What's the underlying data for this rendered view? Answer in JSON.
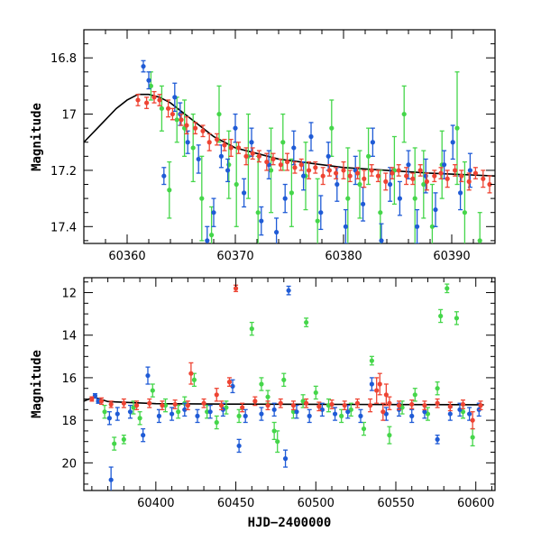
{
  "chart_data": [
    {
      "type": "scatter",
      "title": "",
      "xlabel": "",
      "ylabel": "Magnitude",
      "xlim": [
        60356,
        60394
      ],
      "ylim": [
        17.46,
        16.7
      ],
      "y_inverted": true,
      "xticks": [
        60360,
        60370,
        60380,
        60390
      ],
      "xtick_labels": [
        "60360",
        "60370",
        "60380",
        "60390"
      ],
      "yticks": [
        16.8,
        17,
        17.2,
        17.4
      ],
      "ytick_labels": [
        "16.8",
        "17",
        "17.2",
        "17.4"
      ],
      "grid": false,
      "colors": {
        "blue": "#1f5bd6",
        "green": "#45d64a",
        "red": "#ee4433",
        "model": "#000000"
      },
      "model_curve": {
        "x": [
          60356,
          60357,
          60358,
          60359,
          60360,
          60361,
          60362,
          60363,
          60364,
          60365,
          60366,
          60367,
          60368,
          60369,
          60370,
          60372,
          60374,
          60376,
          60378,
          60380,
          60384,
          60388,
          60394
        ],
        "y": [
          17.1,
          17.06,
          17.02,
          16.98,
          16.95,
          16.93,
          16.93,
          16.94,
          16.96,
          16.99,
          17.02,
          17.05,
          17.08,
          17.1,
          17.12,
          17.14,
          17.16,
          17.17,
          17.18,
          17.19,
          17.2,
          17.21,
          17.22
        ]
      },
      "series": [
        {
          "name": "",
          "color_key": "red",
          "x": [
            60361,
            60361.8,
            60362.5,
            60363,
            60363.8,
            60364.2,
            60365,
            60365.5,
            60366.3,
            60367,
            60367.6,
            60368.3,
            60369,
            60369.6,
            60370.3,
            60371,
            60371.6,
            60372.2,
            60372.9,
            60373.5,
            60374.2,
            60374.8,
            60375.5,
            60376.1,
            60376.8,
            60377.4,
            60378.1,
            60378.7,
            60379.3,
            60380,
            60380.6,
            60381.3,
            60381.9,
            60382.6,
            60383.2,
            60383.9,
            60384.5,
            60385.1,
            60385.8,
            60386.4,
            60387.1,
            60387.7,
            60388.4,
            60389,
            60389.6,
            60390.3,
            60390.9,
            60391.6,
            60392.2,
            60392.9,
            60393.5
          ],
          "y": [
            16.95,
            16.96,
            16.94,
            16.95,
            16.98,
            17.0,
            17.02,
            17.04,
            17.05,
            17.06,
            17.1,
            17.09,
            17.11,
            17.12,
            17.12,
            17.15,
            17.14,
            17.15,
            17.17,
            17.16,
            17.18,
            17.17,
            17.19,
            17.18,
            17.2,
            17.19,
            17.22,
            17.2,
            17.21,
            17.2,
            17.22,
            17.21,
            17.23,
            17.2,
            17.22,
            17.24,
            17.21,
            17.2,
            17.22,
            17.23,
            17.2,
            17.24,
            17.22,
            17.21,
            17.23,
            17.2,
            17.22,
            17.24,
            17.21,
            17.23,
            17.25
          ],
          "err": [
            0.02,
            0.02,
            0.02,
            0.02,
            0.03,
            0.02,
            0.02,
            0.03,
            0.02,
            0.02,
            0.03,
            0.02,
            0.02,
            0.03,
            0.02,
            0.03,
            0.02,
            0.02,
            0.03,
            0.02,
            0.02,
            0.03,
            0.02,
            0.02,
            0.03,
            0.02,
            0.03,
            0.02,
            0.02,
            0.03,
            0.02,
            0.02,
            0.03,
            0.02,
            0.02,
            0.03,
            0.02,
            0.02,
            0.03,
            0.02,
            0.02,
            0.03,
            0.02,
            0.02,
            0.03,
            0.02,
            0.02,
            0.03,
            0.02,
            0.03,
            0.03
          ]
        },
        {
          "name": "",
          "color_key": "blue",
          "x": [
            60361.5,
            60362,
            60363.4,
            60364.4,
            60364.9,
            60365.6,
            60366.6,
            60367.4,
            60368,
            60368.7,
            60369.3,
            60370,
            60370.8,
            60371.5,
            60372.4,
            60373.1,
            60373.8,
            60374.6,
            60375.4,
            60376.3,
            60377,
            60377.9,
            60378.6,
            60379.4,
            60380.2,
            60381.1,
            60381.8,
            60382.7,
            60383.5,
            60384.3,
            60385.2,
            60386,
            60386.8,
            60387.6,
            60388.5,
            60389.3,
            60390.1,
            60390.8,
            60391.7
          ],
          "y": [
            16.83,
            16.88,
            17.22,
            16.94,
            17.0,
            17.1,
            17.16,
            17.45,
            17.35,
            17.15,
            17.2,
            17.05,
            17.28,
            17.1,
            17.38,
            17.18,
            17.42,
            17.3,
            17.12,
            17.22,
            17.08,
            17.35,
            17.15,
            17.25,
            17.4,
            17.2,
            17.32,
            17.1,
            17.45,
            17.25,
            17.3,
            17.18,
            17.4,
            17.22,
            17.34,
            17.18,
            17.1,
            17.28,
            17.2
          ],
          "err": [
            0.02,
            0.03,
            0.03,
            0.05,
            0.04,
            0.04,
            0.05,
            0.05,
            0.05,
            0.04,
            0.04,
            0.05,
            0.05,
            0.05,
            0.05,
            0.05,
            0.05,
            0.05,
            0.06,
            0.05,
            0.05,
            0.06,
            0.05,
            0.06,
            0.06,
            0.05,
            0.06,
            0.05,
            0.06,
            0.06,
            0.06,
            0.05,
            0.06,
            0.06,
            0.06,
            0.05,
            0.06,
            0.06,
            0.06
          ]
        },
        {
          "name": "",
          "color_key": "green",
          "x": [
            60362.2,
            60363.2,
            60363.9,
            60364.6,
            60365.3,
            60366.1,
            60366.9,
            60367.8,
            60368.5,
            60369.4,
            60370.1,
            60371.2,
            60372.1,
            60373.3,
            60374.4,
            60375.2,
            60376.5,
            60377.6,
            60378.9,
            60380.4,
            60381.5,
            60382.3,
            60383.4,
            60384.7,
            60385.6,
            60386.6,
            60387.4,
            60388.2,
            60389.1,
            60390.5,
            60391.2,
            60392.6
          ],
          "y": [
            16.9,
            16.98,
            17.27,
            17.02,
            17.05,
            17.12,
            17.3,
            17.43,
            17.0,
            17.18,
            17.25,
            17.15,
            17.35,
            17.2,
            17.1,
            17.28,
            17.22,
            17.38,
            17.05,
            17.3,
            17.25,
            17.15,
            17.35,
            17.2,
            17.0,
            17.3,
            17.25,
            17.4,
            17.18,
            17.05,
            17.35,
            17.45
          ],
          "err": [
            0.05,
            0.08,
            0.1,
            0.08,
            0.1,
            0.12,
            0.15,
            0.1,
            0.1,
            0.12,
            0.15,
            0.15,
            0.2,
            0.15,
            0.1,
            0.12,
            0.12,
            0.15,
            0.1,
            0.18,
            0.12,
            0.1,
            0.15,
            0.12,
            0.1,
            0.18,
            0.12,
            0.15,
            0.12,
            0.2,
            0.18,
            0.1
          ]
        }
      ]
    },
    {
      "type": "scatter",
      "title": "",
      "xlabel": "HJD−2400000",
      "ylabel": "Magnitude",
      "xlim": [
        60355,
        60612
      ],
      "ylim": [
        21.3,
        11.3
      ],
      "y_inverted": true,
      "xticks": [
        60400,
        60450,
        60500,
        60550,
        60600
      ],
      "xtick_labels": [
        "60400",
        "60450",
        "60500",
        "60550",
        "60600"
      ],
      "yticks": [
        12,
        14,
        16,
        18,
        20
      ],
      "ytick_labels": [
        "12",
        "14",
        "16",
        "18",
        "20"
      ],
      "grid": false,
      "colors": {
        "blue": "#1f5bd6",
        "green": "#45d64a",
        "red": "#ee4433",
        "model": "#000000"
      },
      "model_curve": {
        "x": [
          60355,
          60360,
          60362,
          60370,
          60400,
          60450,
          60500,
          60550,
          60605
        ],
        "y": [
          17.1,
          16.95,
          16.93,
          17.12,
          17.22,
          17.24,
          17.25,
          17.26,
          17.27
        ]
      },
      "series": [
        {
          "name": "",
          "color_key": "red",
          "x": [
            60360,
            60366,
            60372,
            60380,
            60388,
            60396,
            60404,
            60412,
            60420,
            60422,
            60430,
            60438,
            60441,
            60446,
            60450,
            60454,
            60462,
            60470,
            60478,
            60486,
            60494,
            60502,
            60510,
            60518,
            60526,
            60534,
            60538,
            60540,
            60542,
            60544,
            60546,
            60552,
            60560,
            60568,
            60576,
            60584,
            60592,
            60598,
            60603
          ],
          "y": [
            17.0,
            17.1,
            17.25,
            17.2,
            17.3,
            17.2,
            17.3,
            17.25,
            17.3,
            15.8,
            17.2,
            16.8,
            17.3,
            16.2,
            11.8,
            17.4,
            17.1,
            17.3,
            17.2,
            17.3,
            17.2,
            17.35,
            17.25,
            17.3,
            17.2,
            17.3,
            16.6,
            16.3,
            17.6,
            16.8,
            17.2,
            17.3,
            17.25,
            17.3,
            17.2,
            17.35,
            17.25,
            18.0,
            17.3
          ],
          "err": [
            0.1,
            0.15,
            0.15,
            0.2,
            0.2,
            0.2,
            0.2,
            0.2,
            0.2,
            0.5,
            0.2,
            0.3,
            0.2,
            0.2,
            0.15,
            0.2,
            0.2,
            0.2,
            0.2,
            0.2,
            0.2,
            0.2,
            0.2,
            0.2,
            0.2,
            0.3,
            0.6,
            0.5,
            0.4,
            0.5,
            0.3,
            0.2,
            0.2,
            0.2,
            0.2,
            0.2,
            0.2,
            0.4,
            0.2
          ]
        },
        {
          "name": "",
          "color_key": "blue",
          "x": [
            60362,
            60364,
            60371,
            60372,
            60376,
            60384,
            60392,
            60395,
            60402,
            60410,
            60418,
            60426,
            60434,
            60442,
            60448,
            60452,
            60456,
            60466,
            60474,
            60481,
            60483,
            60488,
            60496,
            60504,
            60512,
            60520,
            60528,
            60535,
            60544,
            60552,
            60560,
            60568,
            60576,
            60584,
            60590,
            60596,
            60602
          ],
          "y": [
            16.85,
            17.1,
            17.9,
            20.8,
            17.7,
            17.6,
            18.7,
            15.9,
            17.8,
            17.7,
            17.5,
            17.8,
            17.6,
            17.5,
            16.4,
            19.2,
            17.8,
            17.7,
            17.5,
            19.8,
            11.9,
            17.6,
            17.8,
            17.5,
            17.7,
            17.6,
            17.8,
            16.3,
            17.7,
            17.5,
            17.8,
            17.6,
            18.9,
            17.7,
            17.5,
            17.7,
            17.5
          ],
          "err": [
            0.1,
            0.1,
            0.3,
            0.6,
            0.3,
            0.3,
            0.3,
            0.4,
            0.3,
            0.3,
            0.3,
            0.3,
            0.3,
            0.3,
            0.3,
            0.3,
            0.3,
            0.3,
            0.3,
            0.4,
            0.2,
            0.3,
            0.3,
            0.3,
            0.3,
            0.3,
            0.3,
            0.3,
            0.3,
            0.3,
            0.3,
            0.3,
            0.2,
            0.3,
            0.3,
            0.3,
            0.3
          ]
        },
        {
          "name": "",
          "color_key": "green",
          "x": [
            60368,
            60374,
            60380,
            60386,
            60390,
            60398,
            60406,
            60414,
            60418,
            60424,
            60432,
            60438,
            60444,
            60452,
            60460,
            60466,
            60470,
            60474,
            60476,
            60480,
            60486,
            60492,
            60494,
            60500,
            60508,
            60516,
            60522,
            60530,
            60535,
            60546,
            60554,
            60562,
            60570,
            60576,
            60578,
            60582,
            60588,
            60592,
            60598
          ],
          "y": [
            17.6,
            19.1,
            18.9,
            17.4,
            17.9,
            16.6,
            17.3,
            17.6,
            17.2,
            16.1,
            17.6,
            18.1,
            17.4,
            17.8,
            13.7,
            16.3,
            16.9,
            18.5,
            19.0,
            16.1,
            17.6,
            17.1,
            13.4,
            16.7,
            17.3,
            17.8,
            17.5,
            18.4,
            15.2,
            18.7,
            17.4,
            16.8,
            17.7,
            16.5,
            13.1,
            11.8,
            13.2,
            17.6,
            18.8
          ],
          "err": [
            0.3,
            0.3,
            0.2,
            0.3,
            0.3,
            0.3,
            0.3,
            0.3,
            0.3,
            0.3,
            0.3,
            0.3,
            0.3,
            0.3,
            0.3,
            0.3,
            0.3,
            0.4,
            0.5,
            0.3,
            0.3,
            0.3,
            0.2,
            0.3,
            0.3,
            0.3,
            0.3,
            0.3,
            0.2,
            0.4,
            0.3,
            0.3,
            0.3,
            0.3,
            0.3,
            0.2,
            0.3,
            0.3,
            0.4
          ]
        }
      ]
    }
  ]
}
